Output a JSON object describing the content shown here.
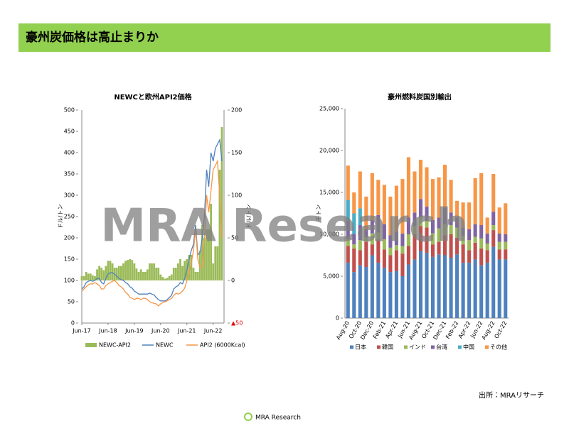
{
  "header": {
    "title": "豪州炭価格は高止まりか"
  },
  "watermark": "MRA Research",
  "source": "出所：MRAリサーチ",
  "logo": "MRA Research",
  "chart_data": [
    {
      "type": "line",
      "title": "NEWCと欧州API2価格",
      "y_label": "ドル/トン",
      "y2_label": "ドル/トン",
      "categories": [
        "Jun-17",
        null,
        null,
        null,
        null,
        null,
        null,
        null,
        null,
        null,
        null,
        null,
        "Jun-18",
        null,
        null,
        null,
        null,
        null,
        null,
        null,
        null,
        null,
        null,
        null,
        "Jun-19",
        null,
        null,
        null,
        null,
        null,
        null,
        null,
        null,
        null,
        null,
        null,
        "Jun-20",
        null,
        null,
        null,
        null,
        null,
        null,
        null,
        null,
        null,
        null,
        null,
        "Jun-21",
        null,
        null,
        null,
        null,
        null,
        null,
        null,
        null,
        null,
        null,
        null,
        "Jun-22",
        null,
        null,
        null,
        null
      ],
      "ylim": [
        0,
        500
      ],
      "yticks": [
        0,
        50,
        100,
        150,
        200,
        250,
        300,
        350,
        400,
        450,
        500
      ],
      "y2lim": [
        -50,
        200
      ],
      "y2ticks": [
        {
          "value": -50,
          "label": "▲50"
        },
        0,
        50,
        100,
        150,
        200
      ],
      "series": [
        {
          "name": "NEWC-API2",
          "color": "#9bbb59",
          "kind": "bar",
          "axis": "y2",
          "values": [
            5,
            5,
            10,
            8,
            8,
            6,
            5,
            13,
            17,
            15,
            12,
            17,
            23,
            23,
            20,
            15,
            15,
            17,
            17,
            20,
            23,
            24,
            25,
            24,
            20,
            14,
            10,
            13,
            10,
            10,
            13,
            20,
            20,
            20,
            15,
            15,
            7,
            4,
            2,
            3,
            5,
            7,
            15,
            15,
            20,
            25,
            17,
            23,
            25,
            30,
            30,
            15,
            10,
            10,
            35,
            65,
            50,
            60,
            60,
            90,
            20,
            40,
            40,
            130,
            180
          ]
        },
        {
          "name": "NEWC",
          "color": "#4f81bd",
          "kind": "line",
          "values": [
            80,
            85,
            95,
            98,
            100,
            98,
            100,
            105,
            105,
            95,
            92,
            105,
            115,
            118,
            118,
            115,
            110,
            105,
            102,
            100,
            95,
            92,
            85,
            82,
            75,
            72,
            68,
            68,
            68,
            68,
            68,
            70,
            68,
            66,
            60,
            55,
            52,
            52,
            52,
            55,
            60,
            65,
            80,
            85,
            88,
            95,
            92,
            105,
            125,
            150,
            170,
            185,
            230,
            160,
            165,
            200,
            250,
            360,
            320,
            400,
            380,
            410,
            420,
            430,
            380
          ]
        },
        {
          "name": "API2 (6000Kcal)",
          "color": "#f79646",
          "kind": "line",
          "values": [
            75,
            80,
            85,
            90,
            92,
            92,
            95,
            92,
            88,
            80,
            80,
            88,
            92,
            95,
            98,
            100,
            95,
            88,
            85,
            80,
            72,
            68,
            60,
            58,
            55,
            58,
            58,
            55,
            58,
            58,
            55,
            50,
            48,
            46,
            45,
            40,
            45,
            48,
            50,
            52,
            55,
            58,
            65,
            70,
            68,
            70,
            75,
            82,
            100,
            120,
            140,
            170,
            220,
            150,
            130,
            135,
            200,
            300,
            260,
            310,
            360,
            370,
            380,
            300,
            200
          ]
        }
      ]
    },
    {
      "type": "bar",
      "stacked": true,
      "title": "豪州燃料炭国別輸出",
      "y_label": "千トン",
      "categories": [
        "Aug-20",
        null,
        "Oct-20",
        null,
        "Dec-20",
        null,
        "Feb-21",
        null,
        "Apr-21",
        null,
        "Jun-21",
        null,
        "Aug-21",
        null,
        "Oct-21",
        null,
        "Dec-21",
        null,
        "Feb-22",
        null,
        "Apr-22",
        null,
        "Jun-22",
        null,
        "Aug-22",
        null,
        "Oct-22"
      ],
      "ylim": [
        0,
        25000
      ],
      "yticks": [
        0,
        {
          "value": 5000,
          "label": "5,000"
        },
        {
          "value": 10000,
          "label": "10,000"
        },
        {
          "value": 15000,
          "label": "15,000"
        },
        {
          "value": 20000,
          "label": "20,000"
        },
        {
          "value": 25000,
          "label": "25,000"
        }
      ],
      "series": [
        {
          "name": "日本",
          "color": "#4f81bd",
          "values": [
            6600,
            5500,
            6300,
            6100,
            7500,
            6600,
            6000,
            5500,
            5600,
            5000,
            6400,
            7000,
            8000,
            7800,
            7300,
            7600,
            7500,
            7200,
            7600,
            6600,
            6600,
            7000,
            6300,
            6600,
            8500,
            7000,
            7000
          ]
        },
        {
          "name": "韓国",
          "color": "#c0504d",
          "values": [
            2000,
            2800,
            1800,
            3000,
            1300,
            2800,
            2200,
            2000,
            2500,
            2700,
            2200,
            3000,
            3000,
            3000,
            1500,
            1500,
            2400,
            2800,
            2000,
            2200,
            1500,
            2000,
            2000,
            1500,
            2000,
            1200,
            1200
          ]
        },
        {
          "name": "インド",
          "color": "#9bbb59",
          "values": [
            800,
            500,
            1200,
            500,
            1300,
            800,
            1200,
            900,
            600,
            900,
            1400,
            1000,
            1000,
            800,
            1300,
            1600,
            1300,
            1100,
            1200,
            1000,
            1200,
            700,
            1200,
            800,
            600,
            900,
            900
          ]
        },
        {
          "name": "台湾",
          "color": "#8064a2",
          "values": [
            2200,
            1200,
            1800,
            1000,
            1600,
            2100,
            1800,
            1500,
            1600,
            1500,
            2000,
            1600,
            2200,
            1700,
            1600,
            1300,
            2000,
            1500,
            1200,
            1000,
            1300,
            1500,
            1600,
            1200,
            1600,
            1000,
            900
          ]
        },
        {
          "name": "中国",
          "color": "#4bacc6",
          "values": [
            2500,
            2500,
            2000,
            0,
            0,
            0,
            0,
            0,
            0,
            0,
            0,
            0,
            0,
            0,
            0,
            0,
            0,
            0,
            0,
            0,
            0,
            0,
            0,
            0,
            0,
            0,
            0
          ]
        },
        {
          "name": "その他",
          "color": "#f79646",
          "values": [
            4100,
            2500,
            4400,
            3900,
            5600,
            4200,
            4700,
            4600,
            5500,
            6500,
            7200,
            4900,
            4700,
            4700,
            4900,
            4800,
            5100,
            3900,
            2000,
            3000,
            3200,
            5500,
            6200,
            1900,
            4500,
            3100,
            3700
          ]
        }
      ]
    }
  ]
}
